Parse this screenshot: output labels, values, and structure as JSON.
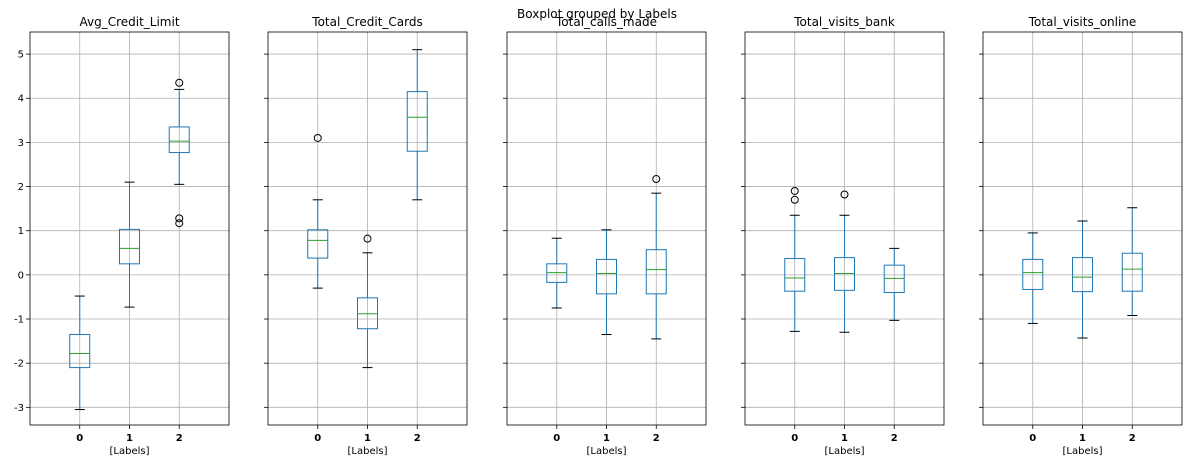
{
  "colors": {
    "box": "#1f77b4",
    "median": "#2ca02c",
    "grid": "#b0b0b0",
    "whisker": "#000000",
    "flier": "#000000"
  },
  "chart_data": {
    "type": "boxplot",
    "suptitle": "Boxplot grouped by Labels",
    "categories": [
      "0",
      "1",
      "2"
    ],
    "xlabel": "[Labels]",
    "ylim": [
      -3.4,
      5.5
    ],
    "yticks": [
      "-3",
      "-2",
      "-1",
      "0",
      "1",
      "2",
      "3",
      "4",
      "5"
    ],
    "sharey": true,
    "grid": true,
    "panels": [
      {
        "title": "Avg_Credit_Limit",
        "boxes": [
          {
            "category": "0",
            "whislo": -3.05,
            "q1": -2.1,
            "med": -1.78,
            "q3": -1.35,
            "whishi": -0.48,
            "fliers": []
          },
          {
            "category": "1",
            "whislo": -0.73,
            "q1": 0.25,
            "med": 0.6,
            "q3": 1.03,
            "whishi": 2.1,
            "fliers": []
          },
          {
            "category": "2",
            "whislo": 2.05,
            "q1": 2.77,
            "med": 3.03,
            "q3": 3.35,
            "whishi": 4.2,
            "fliers": [
              4.35,
              1.28,
              1.17
            ]
          }
        ]
      },
      {
        "title": "Total_Credit_Cards",
        "boxes": [
          {
            "category": "0",
            "whislo": -0.3,
            "q1": 0.38,
            "med": 0.78,
            "q3": 1.02,
            "whishi": 1.7,
            "fliers": [
              3.1
            ]
          },
          {
            "category": "1",
            "whislo": -2.1,
            "q1": -1.22,
            "med": -0.88,
            "q3": -0.52,
            "whishi": 0.5,
            "fliers": [
              0.82
            ]
          },
          {
            "category": "2",
            "whislo": 1.7,
            "q1": 2.8,
            "med": 3.57,
            "q3": 4.15,
            "whishi": 5.1,
            "fliers": []
          }
        ]
      },
      {
        "title": "Total_calls_made",
        "boxes": [
          {
            "category": "0",
            "whislo": -0.75,
            "q1": -0.17,
            "med": 0.05,
            "q3": 0.25,
            "whishi": 0.83,
            "fliers": []
          },
          {
            "category": "1",
            "whislo": -1.35,
            "q1": -0.43,
            "med": 0.03,
            "q3": 0.35,
            "whishi": 1.02,
            "fliers": []
          },
          {
            "category": "2",
            "whislo": -1.45,
            "q1": -0.43,
            "med": 0.12,
            "q3": 0.57,
            "whishi": 1.85,
            "fliers": [
              2.17
            ]
          }
        ]
      },
      {
        "title": "Total_visits_bank",
        "boxes": [
          {
            "category": "0",
            "whislo": -1.28,
            "q1": -0.37,
            "med": -0.07,
            "q3": 0.37,
            "whishi": 1.35,
            "fliers": [
              1.9,
              1.7
            ]
          },
          {
            "category": "1",
            "whislo": -1.3,
            "q1": -0.35,
            "med": 0.03,
            "q3": 0.39,
            "whishi": 1.35,
            "fliers": [
              1.82
            ]
          },
          {
            "category": "2",
            "whislo": -1.03,
            "q1": -0.4,
            "med": -0.08,
            "q3": 0.22,
            "whishi": 0.6,
            "fliers": []
          }
        ]
      },
      {
        "title": "Total_visits_online",
        "boxes": [
          {
            "category": "0",
            "whislo": -1.1,
            "q1": -0.33,
            "med": 0.05,
            "q3": 0.35,
            "whishi": 0.95,
            "fliers": []
          },
          {
            "category": "1",
            "whislo": -1.43,
            "q1": -0.38,
            "med": -0.05,
            "q3": 0.39,
            "whishi": 1.22,
            "fliers": []
          },
          {
            "category": "2",
            "whislo": -0.92,
            "q1": -0.37,
            "med": 0.13,
            "q3": 0.49,
            "whishi": 1.52,
            "fliers": []
          }
        ]
      }
    ]
  }
}
